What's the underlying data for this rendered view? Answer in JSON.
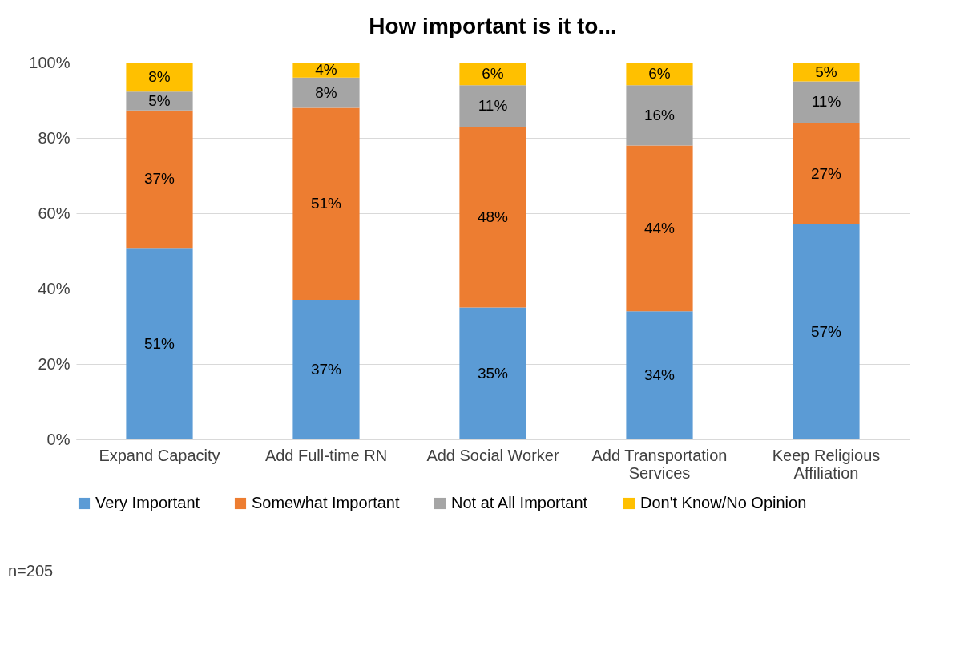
{
  "chart_data": {
    "type": "bar",
    "stacked": true,
    "title": "How important is it to...",
    "categories": [
      "Expand Capacity",
      "Add Full-time RN",
      "Add Social Worker",
      "Add Transportation Services",
      "Keep Religious Affiliation"
    ],
    "series": [
      {
        "name": "Very Important",
        "color": "#5b9bd5",
        "values": [
          50.8,
          37,
          35,
          34,
          57
        ],
        "value_labels": [
          "51%",
          "37%",
          "35%",
          "34%",
          "57%"
        ]
      },
      {
        "name": "Somewhat Important",
        "color": "#ed7d31",
        "values": [
          36.5,
          51,
          48,
          44,
          27
        ],
        "value_labels": [
          "37%",
          "51%",
          "48%",
          "44%",
          "27%"
        ]
      },
      {
        "name": "Not at All Important",
        "color": "#a5a5a5",
        "values": [
          5,
          8,
          11,
          16,
          11
        ],
        "value_labels": [
          "5%",
          "8%",
          "11%",
          "16%",
          "11%"
        ]
      },
      {
        "name": "Don't Know/No Opinion",
        "color": "#ffc000",
        "values": [
          7.7,
          4,
          6,
          6,
          5
        ],
        "value_labels": [
          "8%",
          "4%",
          "6%",
          "6%",
          "5%"
        ]
      }
    ],
    "ylim": [
      0,
      100
    ],
    "yticks": [
      {
        "value": 0,
        "label": "0%"
      },
      {
        "value": 20,
        "label": "20%"
      },
      {
        "value": 40,
        "label": "40%"
      },
      {
        "value": 60,
        "label": "60%"
      },
      {
        "value": 80,
        "label": "80%"
      },
      {
        "value": 100,
        "label": "100%"
      }
    ],
    "grid": "y",
    "legend": "bottom",
    "annotations": [
      "n=205"
    ]
  }
}
